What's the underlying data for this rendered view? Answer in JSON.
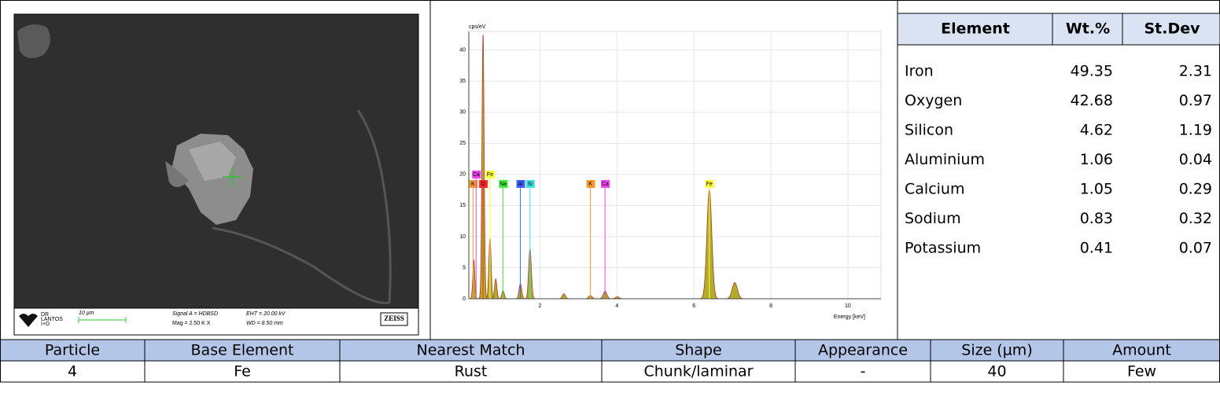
{
  "sem_image": {
    "logo": [
      "DR",
      "LANTOS",
      "I+D"
    ],
    "scale_bar": "10 µm",
    "signal": "Signal A = HDBSD",
    "mag": "Mag =  2.50 K X",
    "eht": "EHT = 20.00 kV",
    "wd": "WD = 8.50 mm",
    "brand": "ZEISS"
  },
  "spectrum": {
    "y_label": "cps/eV",
    "x_label": "Energy [keV]",
    "xlim": [
      0.15,
      10.86
    ],
    "ylim": [
      0,
      43
    ],
    "xticks": [
      2,
      4,
      6,
      8,
      10
    ],
    "yticks": [
      0,
      5,
      10,
      15,
      20,
      25,
      30,
      35,
      40
    ],
    "fill_color": "#b1ad2a",
    "line_color": "#b03a2e",
    "peaks": [
      {
        "energy": 0.28,
        "height": 6.2
      },
      {
        "energy": 0.52,
        "height": 42.5
      },
      {
        "energy": 0.7,
        "height": 9.8
      },
      {
        "energy": 0.85,
        "height": 3.2
      },
      {
        "energy": 1.04,
        "height": 1.3
      },
      {
        "energy": 1.49,
        "height": 2.4
      },
      {
        "energy": 1.74,
        "height": 8.0
      },
      {
        "energy": 2.62,
        "height": 0.8
      },
      {
        "energy": 3.31,
        "height": 0.5
      },
      {
        "energy": 3.69,
        "height": 1.2
      },
      {
        "energy": 4.01,
        "height": 0.3
      },
      {
        "energy": 6.4,
        "height": 17.6
      },
      {
        "energy": 7.06,
        "height": 2.6
      }
    ],
    "markers": [
      {
        "label": "K",
        "energy": 0.26,
        "color": "#f39a32"
      },
      {
        "label": "Ca",
        "energy": 0.34,
        "color": "#f040f0"
      },
      {
        "label": "O",
        "energy": 0.52,
        "color": "#ff2a2a"
      },
      {
        "label": "Fe",
        "energy": 0.7,
        "color": "#ffff3a"
      },
      {
        "label": "Na",
        "energy": 1.04,
        "color": "#3cf03c"
      },
      {
        "label": "Al",
        "energy": 1.49,
        "color": "#4060ff"
      },
      {
        "label": "Si",
        "energy": 1.74,
        "color": "#40e0e0"
      },
      {
        "label": "K",
        "energy": 3.31,
        "color": "#f39a32"
      },
      {
        "label": "Ca",
        "energy": 3.69,
        "color": "#f040f0"
      },
      {
        "label": "Fe",
        "energy": 6.4,
        "color": "#ffff3a"
      }
    ]
  },
  "element_table": {
    "header": [
      "Element",
      "Wt.%",
      "St.Dev"
    ],
    "rows": [
      [
        "Iron",
        "49.35",
        "2.31"
      ],
      [
        "Oxygen",
        "42.68",
        "0.97"
      ],
      [
        "Silicon",
        "4.62",
        "1.19"
      ],
      [
        "Aluminium",
        "1.06",
        "0.04"
      ],
      [
        "Calcium",
        "1.05",
        "0.29"
      ],
      [
        "Sodium",
        "0.83",
        "0.32"
      ],
      [
        "Potassium",
        "0.41",
        "0.07"
      ]
    ]
  },
  "particle_table": {
    "header": [
      "Particle",
      "Base Element",
      "Nearest Match",
      "Shape",
      "Appearance",
      "Size (µm)",
      "Amount"
    ],
    "rows": [
      [
        "4",
        "Fe",
        "Rust",
        "Chunk/laminar",
        "-",
        "40",
        "Few"
      ]
    ]
  }
}
